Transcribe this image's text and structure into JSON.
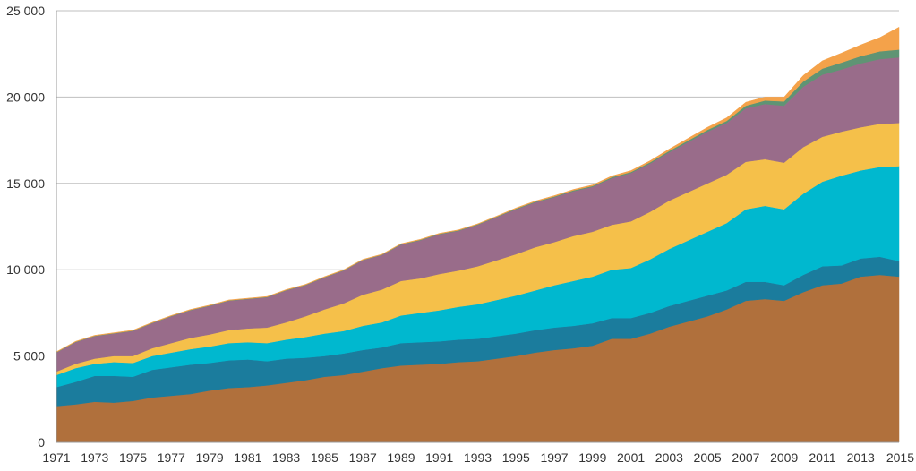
{
  "chart_data": {
    "type": "area",
    "stacked": true,
    "grid": true,
    "legend": "none",
    "title": "",
    "xlabel": "",
    "ylabel": "",
    "ylim": [
      0,
      25000
    ],
    "xlim": [
      1971,
      2015
    ],
    "yticks": [
      0,
      5000,
      10000,
      15000,
      20000,
      25000
    ],
    "ytick_labels": [
      "0",
      "5 000",
      "10 000",
      "15 000",
      "20 000",
      "25 000"
    ],
    "xtick_labels": [
      "1971",
      "1973",
      "1975",
      "1977",
      "1979",
      "1981",
      "1983",
      "1985",
      "1987",
      "1989",
      "1991",
      "1993",
      "1995",
      "1997",
      "1999",
      "2001",
      "2003",
      "2005",
      "2007",
      "2009",
      "2011",
      "2013",
      "2015"
    ],
    "x": [
      1971,
      1972,
      1973,
      1974,
      1975,
      1976,
      1977,
      1978,
      1979,
      1980,
      1981,
      1982,
      1983,
      1984,
      1985,
      1986,
      1987,
      1988,
      1989,
      1990,
      1991,
      1992,
      1993,
      1994,
      1995,
      1996,
      1997,
      1998,
      1999,
      2000,
      2001,
      2002,
      2003,
      2004,
      2005,
      2006,
      2007,
      2008,
      2009,
      2010,
      2011,
      2012,
      2013,
      2014,
      2015
    ],
    "series": [
      {
        "color": "#b0703c",
        "values": [
          2100,
          2200,
          2350,
          2300,
          2400,
          2600,
          2700,
          2800,
          3000,
          3150,
          3200,
          3300,
          3450,
          3600,
          3800,
          3900,
          4100,
          4300,
          4450,
          4500,
          4550,
          4650,
          4700,
          4850,
          5000,
          5200,
          5350,
          5450,
          5600,
          6000,
          6000,
          6300,
          6700,
          7000,
          7300,
          7700,
          8200,
          8300,
          8200,
          8700,
          9100,
          9200,
          9600,
          9700,
          9600
        ]
      },
      {
        "color": "#1b7c9d",
        "values": [
          1100,
          1300,
          1500,
          1550,
          1400,
          1600,
          1650,
          1700,
          1600,
          1600,
          1600,
          1400,
          1400,
          1300,
          1200,
          1250,
          1250,
          1200,
          1300,
          1300,
          1300,
          1300,
          1300,
          1300,
          1300,
          1300,
          1300,
          1300,
          1300,
          1200,
          1200,
          1200,
          1200,
          1200,
          1200,
          1100,
          1100,
          1000,
          900,
          1000,
          1100,
          1050,
          1050,
          1050,
          900
        ]
      },
      {
        "color": "#00b8cf",
        "values": [
          700,
          800,
          700,
          800,
          800,
          800,
          850,
          900,
          950,
          1000,
          1000,
          1050,
          1100,
          1200,
          1300,
          1300,
          1400,
          1450,
          1600,
          1700,
          1800,
          1900,
          2000,
          2100,
          2200,
          2300,
          2450,
          2600,
          2700,
          2800,
          2900,
          3100,
          3300,
          3500,
          3700,
          3900,
          4200,
          4400,
          4400,
          4700,
          4900,
          5200,
          5100,
          5200,
          5500
        ]
      },
      {
        "color": "#f5c04a",
        "values": [
          200,
          250,
          300,
          350,
          400,
          450,
          550,
          650,
          700,
          750,
          800,
          900,
          1000,
          1200,
          1400,
          1600,
          1800,
          1900,
          2000,
          2000,
          2100,
          2100,
          2200,
          2300,
          2400,
          2500,
          2500,
          2600,
          2600,
          2600,
          2700,
          2750,
          2800,
          2800,
          2800,
          2800,
          2750,
          2700,
          2700,
          2700,
          2600,
          2550,
          2500,
          2500,
          2500
        ]
      },
      {
        "color": "#996c8a",
        "values": [
          1100,
          1250,
          1300,
          1300,
          1450,
          1450,
          1550,
          1600,
          1650,
          1700,
          1700,
          1750,
          1850,
          1800,
          1850,
          1900,
          2000,
          2000,
          2100,
          2200,
          2300,
          2300,
          2400,
          2500,
          2600,
          2600,
          2600,
          2600,
          2600,
          2700,
          2800,
          2800,
          2800,
          2900,
          3000,
          3000,
          3100,
          3200,
          3300,
          3500,
          3600,
          3600,
          3700,
          3750,
          3800
        ]
      },
      {
        "color": "#5f9474",
        "values": [
          20,
          20,
          20,
          20,
          20,
          20,
          20,
          20,
          20,
          20,
          20,
          20,
          20,
          20,
          20,
          20,
          20,
          20,
          30,
          30,
          30,
          30,
          30,
          30,
          40,
          40,
          40,
          50,
          50,
          60,
          60,
          70,
          80,
          90,
          100,
          120,
          150,
          200,
          250,
          300,
          350,
          400,
          420,
          450,
          450
        ]
      },
      {
        "color": "#f4a24a",
        "values": [
          30,
          30,
          30,
          30,
          30,
          30,
          30,
          30,
          30,
          30,
          30,
          30,
          30,
          30,
          30,
          30,
          30,
          30,
          30,
          30,
          30,
          30,
          30,
          30,
          40,
          40,
          50,
          50,
          60,
          70,
          80,
          90,
          110,
          130,
          150,
          180,
          200,
          200,
          250,
          350,
          450,
          550,
          650,
          800,
          1300
        ]
      }
    ]
  }
}
